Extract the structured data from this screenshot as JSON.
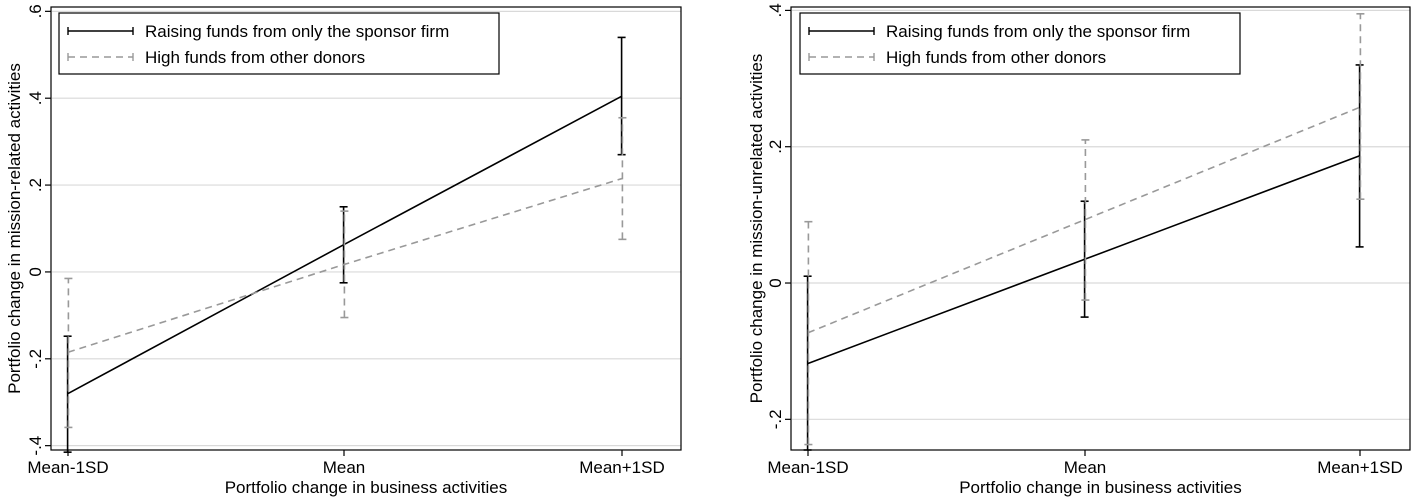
{
  "chart_data": [
    {
      "type": "line",
      "categories": [
        "Mean-1SD",
        "Mean",
        "Mean+1SD"
      ],
      "xlabel": "Portfolio change in business activities",
      "ylabel": "Portfolio change in mission-related activities",
      "ylim": [
        -0.41,
        0.61
      ],
      "yticks": [
        -0.4,
        -0.2,
        0,
        0.2,
        0.4,
        0.6
      ],
      "ytick_labels": [
        "-.4",
        "-.2",
        "0",
        ".2",
        ".4",
        ".6"
      ],
      "grid": true,
      "legend_position": "top-left",
      "series": [
        {
          "name": "Raising funds from only the sponsor firm",
          "style": "solid",
          "color": "#000000",
          "values": [
            -0.28,
            0.063,
            0.405
          ],
          "ci_low": [
            -0.415,
            -0.025,
            0.27
          ],
          "ci_high": [
            -0.148,
            0.15,
            0.54
          ]
        },
        {
          "name": "High funds from other donors",
          "style": "dashed",
          "color": "#999999",
          "values": [
            -0.185,
            0.017,
            0.215
          ],
          "ci_low": [
            -0.358,
            -0.105,
            0.075
          ],
          "ci_high": [
            -0.015,
            0.14,
            0.355
          ]
        }
      ]
    },
    {
      "type": "line",
      "categories": [
        "Mean-1SD",
        "Mean",
        "Mean+1SD"
      ],
      "xlabel": "Portfolio change in business activities",
      "ylabel": "Portfolio change in mission-unrelated activities",
      "ylim": [
        -0.245,
        0.405
      ],
      "yticks": [
        -0.2,
        0,
        0.2,
        0.4
      ],
      "ytick_labels": [
        "-.2",
        "0",
        ".2",
        ".4"
      ],
      "grid": true,
      "legend_position": "top-left",
      "series": [
        {
          "name": "Raising funds from only the sponsor firm",
          "style": "solid",
          "color": "#000000",
          "values": [
            -0.118,
            0.035,
            0.187
          ],
          "ci_low": [
            -0.245,
            -0.05,
            0.053
          ],
          "ci_high": [
            0.01,
            0.12,
            0.32
          ]
        },
        {
          "name": "High funds from other donors",
          "style": "dashed",
          "color": "#999999",
          "values": [
            -0.073,
            0.093,
            0.258
          ],
          "ci_low": [
            -0.237,
            -0.025,
            0.123
          ],
          "ci_high": [
            0.09,
            0.21,
            0.395
          ]
        }
      ]
    }
  ]
}
